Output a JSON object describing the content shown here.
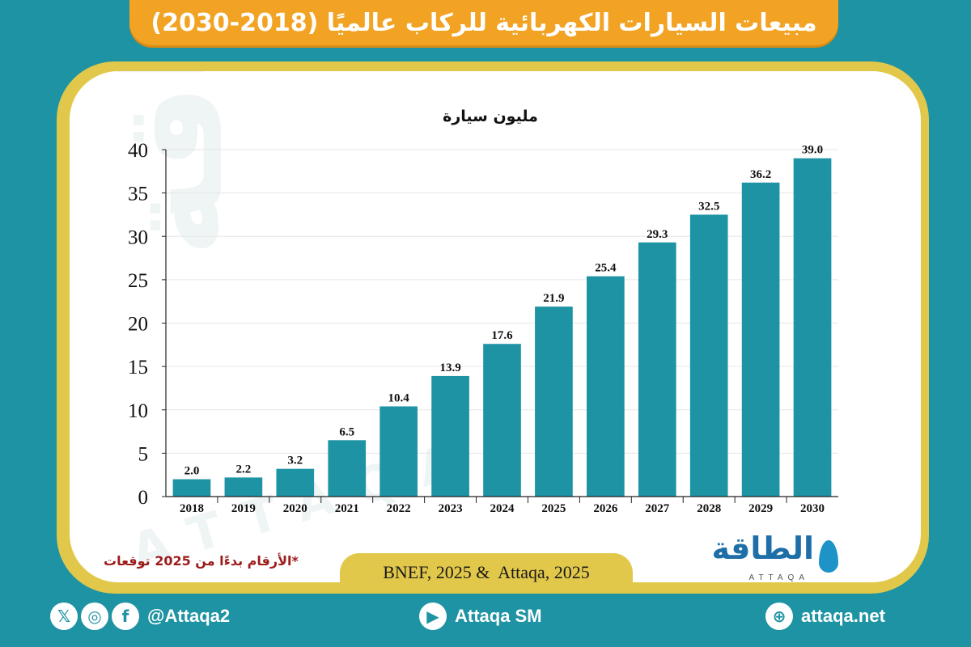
{
  "header": {
    "title": "مبيعات السيارات الكهربائية للركاب عالميًا (2018-2030)"
  },
  "chart_data": {
    "type": "bar",
    "subtitle": "مليون سيارة",
    "categories": [
      "2018",
      "2019",
      "2020",
      "2021",
      "2022",
      "2023",
      "2024",
      "2025",
      "2026",
      "2027",
      "2028",
      "2029",
      "2030"
    ],
    "values": [
      2.0,
      2.2,
      3.2,
      6.5,
      10.4,
      13.9,
      17.6,
      21.9,
      25.4,
      29.3,
      32.5,
      36.2,
      39.0
    ],
    "value_labels": [
      "2.0",
      "2.2",
      "3.2",
      "6.5",
      "10.4",
      "13.9",
      "17.6",
      "21.9",
      "25.4",
      "29.3",
      "32.5",
      "36.2",
      "39.0"
    ],
    "y_ticks": [
      "0",
      "5",
      "10",
      "15",
      "20",
      "25",
      "30",
      "35",
      "40"
    ],
    "ylim": [
      0,
      40
    ],
    "grid": true,
    "bar_color": "#1e93a3"
  },
  "note": "*الأرقام بدءًا من 2025 توقعات",
  "source": "BNEF, 2025 &  Attaqa, 2025",
  "logo": {
    "arabic": "الطاقة",
    "english": "ATTAQA"
  },
  "watermark": {
    "arabic": "الطاقة",
    "english": "ATTAQA"
  },
  "footer": {
    "social_handle": "@Attaqa2",
    "social_icons": [
      "x-icon",
      "instagram-icon",
      "facebook-icon"
    ],
    "youtube": "Attaqa SM",
    "website": "attaqa.net"
  },
  "colors": {
    "background": "#1e93a3",
    "title_bar": "#f2a324",
    "frame": "#e2c84a",
    "note": "#9c1c1c"
  }
}
